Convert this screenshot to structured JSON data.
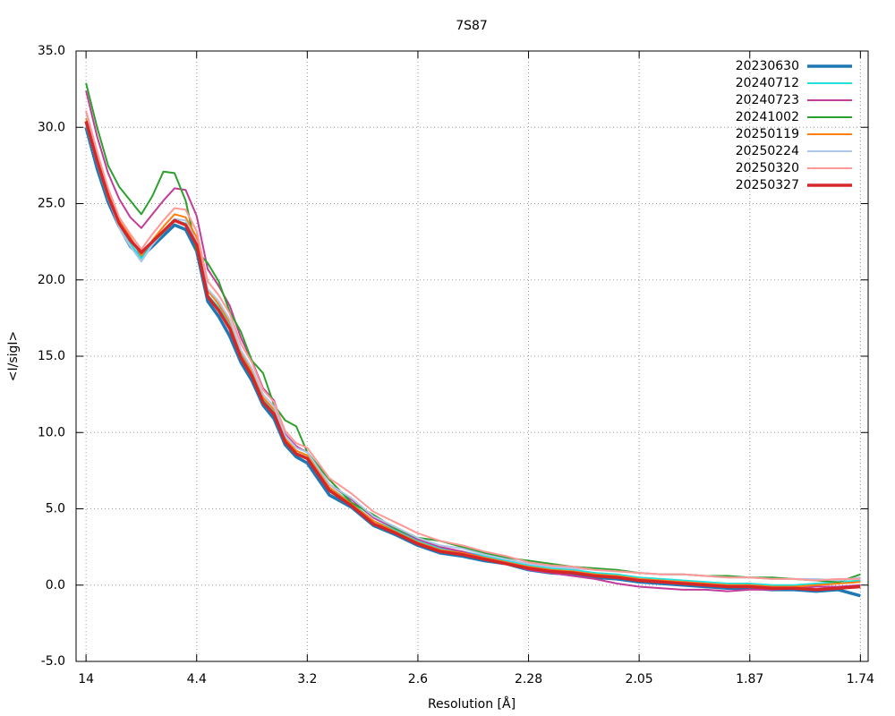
{
  "chart_data": {
    "type": "line",
    "title": "7S87",
    "x_label": "Resolution [Å]",
    "y_label": "<I/sigI>",
    "x": [
      0,
      1,
      2,
      3,
      4,
      5,
      6,
      7,
      8,
      9,
      10,
      11,
      12,
      13,
      14,
      15,
      16,
      17,
      18,
      19,
      20,
      22,
      24,
      26,
      28,
      30,
      32,
      34,
      36,
      38,
      40,
      42,
      44,
      46,
      48,
      50,
      52,
      54,
      56,
      58,
      60,
      62,
      64,
      66,
      68,
      70
    ],
    "xlim": [
      -0.9,
      70.7
    ],
    "xticks": [
      {
        "value": 0,
        "label": "14"
      },
      {
        "value": 10,
        "label": "4.4"
      },
      {
        "value": 20,
        "label": "3.2"
      },
      {
        "value": 30,
        "label": "2.6"
      },
      {
        "value": 40,
        "label": "2.28"
      },
      {
        "value": 50,
        "label": "2.05"
      },
      {
        "value": 60,
        "label": "1.87"
      },
      {
        "value": 70,
        "label": "1.74"
      }
    ],
    "ylim": [
      -5,
      35
    ],
    "yticks": [
      {
        "value": -5,
        "label": "-5.0"
      },
      {
        "value": 0,
        "label": "0.0"
      },
      {
        "value": 5,
        "label": "5.0"
      },
      {
        "value": 10,
        "label": "10.0"
      },
      {
        "value": 15,
        "label": "15.0"
      },
      {
        "value": 20,
        "label": "20.0"
      },
      {
        "value": 25,
        "label": "25.0"
      },
      {
        "value": 30,
        "label": "30.0"
      },
      {
        "value": 35,
        "label": "35.0"
      }
    ],
    "grid": true,
    "legend": "upper right",
    "series": [
      {
        "name": "20230630",
        "color": "#1f77b4",
        "line_width": 3.5,
        "values": [
          30.0,
          27.3,
          25.1,
          23.5,
          22.2,
          21.5,
          22.2,
          22.9,
          23.6,
          23.3,
          21.9,
          18.6,
          17.6,
          16.3,
          14.6,
          13.4,
          11.8,
          10.9,
          9.2,
          8.4,
          8.0,
          5.9,
          5.1,
          3.9,
          3.3,
          2.6,
          2.1,
          1.9,
          1.6,
          1.4,
          1.0,
          0.8,
          0.7,
          0.5,
          0.4,
          0.2,
          0.1,
          0.0,
          -0.1,
          -0.2,
          -0.2,
          -0.3,
          -0.3,
          -0.4,
          -0.3,
          -0.7
        ]
      },
      {
        "name": "20240712",
        "color": "#22e0da",
        "line_width": 2,
        "values": [
          30.2,
          27.6,
          25.3,
          23.6,
          22.4,
          21.4,
          22.3,
          23.1,
          23.9,
          23.7,
          22.2,
          19.0,
          18.2,
          17.0,
          15.1,
          13.9,
          12.2,
          11.4,
          9.6,
          8.8,
          8.5,
          6.4,
          5.4,
          4.2,
          3.6,
          2.9,
          2.4,
          2.2,
          1.9,
          1.6,
          1.3,
          1.1,
          1.0,
          0.8,
          0.7,
          0.5,
          0.4,
          0.3,
          0.2,
          0.1,
          0.1,
          0.0,
          0.0,
          0.1,
          0.2,
          0.3
        ]
      },
      {
        "name": "20240723",
        "color": "#c43c9a",
        "line_width": 2,
        "values": [
          32.4,
          29.4,
          27.0,
          25.3,
          24.1,
          23.4,
          24.3,
          25.2,
          26.0,
          25.9,
          24.2,
          20.7,
          19.6,
          18.3,
          16.2,
          14.7,
          12.9,
          12.1,
          9.9,
          9.1,
          8.7,
          6.6,
          5.6,
          4.4,
          3.7,
          3.0,
          2.5,
          2.2,
          1.8,
          1.5,
          1.0,
          0.8,
          0.6,
          0.4,
          0.1,
          -0.1,
          -0.2,
          -0.3,
          -0.3,
          -0.4,
          -0.3,
          -0.3,
          -0.2,
          -0.1,
          -0.1,
          0.0
        ]
      },
      {
        "name": "20241002",
        "color": "#2ca02c",
        "line_width": 2,
        "values": [
          32.9,
          30.0,
          27.5,
          26.1,
          25.2,
          24.3,
          25.5,
          27.1,
          27.0,
          25.2,
          21.9,
          21.1,
          19.9,
          17.9,
          16.6,
          14.7,
          13.9,
          11.8,
          10.8,
          10.4,
          8.7,
          6.9,
          5.4,
          4.6,
          3.7,
          3.1,
          2.9,
          2.5,
          2.1,
          1.8,
          1.6,
          1.4,
          1.2,
          1.1,
          1.0,
          0.8,
          0.7,
          0.7,
          0.6,
          0.6,
          0.5,
          0.5,
          0.4,
          0.3,
          0.2,
          0.7
        ]
      },
      {
        "name": "20250119",
        "color": "#ff7f0e",
        "line_width": 2,
        "values": [
          30.6,
          28.0,
          25.7,
          23.9,
          22.8,
          21.6,
          22.6,
          23.5,
          24.3,
          24.1,
          22.8,
          19.3,
          18.4,
          17.2,
          15.3,
          14.0,
          12.3,
          11.5,
          9.6,
          8.8,
          8.5,
          6.4,
          5.3,
          4.2,
          3.5,
          2.8,
          2.3,
          2.1,
          1.8,
          1.5,
          1.2,
          1.0,
          0.9,
          0.7,
          0.6,
          0.4,
          0.3,
          0.2,
          0.1,
          0.0,
          0.0,
          -0.1,
          -0.1,
          0.0,
          0.1,
          0.2
        ]
      },
      {
        "name": "20250224",
        "color": "#aec7e8",
        "line_width": 2,
        "values": [
          31.0,
          28.0,
          25.4,
          23.4,
          22.2,
          21.2,
          22.3,
          23.2,
          24.0,
          23.9,
          22.5,
          19.4,
          18.6,
          17.4,
          15.4,
          14.2,
          12.5,
          11.7,
          9.8,
          9.0,
          8.7,
          6.6,
          5.7,
          4.5,
          3.8,
          3.1,
          2.6,
          2.4,
          2.0,
          1.7,
          1.4,
          1.2,
          1.1,
          1.0,
          0.9,
          0.8,
          0.7,
          0.7,
          0.6,
          0.5,
          0.5,
          0.4,
          0.4,
          0.4,
          0.3,
          0.5
        ]
      },
      {
        "name": "20250320",
        "color": "#ff9896",
        "line_width": 2,
        "values": [
          31.1,
          28.4,
          26.0,
          24.1,
          23.0,
          22.0,
          23.0,
          23.9,
          24.7,
          24.6,
          23.2,
          19.9,
          19.0,
          17.8,
          15.8,
          14.6,
          12.8,
          12.0,
          10.1,
          9.3,
          9.0,
          7.0,
          6.0,
          4.8,
          4.1,
          3.4,
          2.9,
          2.6,
          2.2,
          1.9,
          1.5,
          1.3,
          1.2,
          1.0,
          0.9,
          0.8,
          0.7,
          0.7,
          0.6,
          0.5,
          0.5,
          0.4,
          0.4,
          0.3,
          0.4,
          0.4
        ]
      },
      {
        "name": "20250327",
        "color": "#d62728",
        "line_width": 3.5,
        "values": [
          30.4,
          27.8,
          25.5,
          23.7,
          22.6,
          21.8,
          22.5,
          23.2,
          23.9,
          23.6,
          22.3,
          18.9,
          18.0,
          16.8,
          14.9,
          13.7,
          12.0,
          11.2,
          9.4,
          8.6,
          8.3,
          6.2,
          5.2,
          4.0,
          3.4,
          2.7,
          2.2,
          2.0,
          1.7,
          1.4,
          1.1,
          0.9,
          0.8,
          0.6,
          0.5,
          0.3,
          0.2,
          0.1,
          0.0,
          -0.1,
          -0.1,
          -0.2,
          -0.2,
          -0.3,
          -0.2,
          -0.1
        ]
      }
    ]
  }
}
